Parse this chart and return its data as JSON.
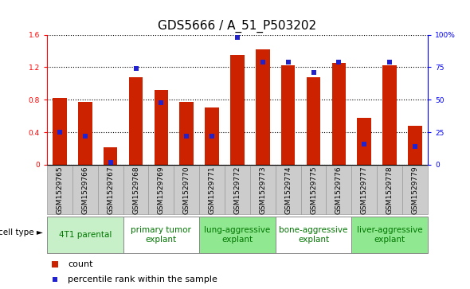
{
  "title": "GDS5666 / A_51_P503202",
  "samples": [
    "GSM1529765",
    "GSM1529766",
    "GSM1529767",
    "GSM1529768",
    "GSM1529769",
    "GSM1529770",
    "GSM1529771",
    "GSM1529772",
    "GSM1529773",
    "GSM1529774",
    "GSM1529775",
    "GSM1529776",
    "GSM1529777",
    "GSM1529778",
    "GSM1529779"
  ],
  "counts": [
    0.82,
    0.77,
    0.21,
    1.08,
    0.92,
    0.77,
    0.7,
    1.35,
    1.42,
    1.22,
    1.08,
    1.25,
    0.58,
    1.22,
    0.48
  ],
  "percentiles": [
    25,
    22,
    2,
    74,
    48,
    22,
    22,
    98,
    79,
    79,
    71,
    79,
    16,
    79,
    14
  ],
  "groups": [
    {
      "label": "4T1 parental",
      "start": 0,
      "end": 3,
      "color": "#c8f0c8"
    },
    {
      "label": "primary tumor\nexplant",
      "start": 3,
      "end": 6,
      "color": "#ffffff"
    },
    {
      "label": "lung-aggressive\nexplant",
      "start": 6,
      "end": 9,
      "color": "#90e890"
    },
    {
      "label": "bone-aggressive\nexplant",
      "start": 9,
      "end": 12,
      "color": "#ffffff"
    },
    {
      "label": "liver-aggressive\nexplant",
      "start": 12,
      "end": 15,
      "color": "#90e890"
    }
  ],
  "ylim_left": [
    0,
    1.6
  ],
  "ylim_right": [
    0,
    100
  ],
  "yticks_left": [
    0,
    0.4,
    0.8,
    1.2,
    1.6
  ],
  "ytick_labels_left": [
    "0",
    "0.4",
    "0.8",
    "1.2",
    "1.6"
  ],
  "yticks_right": [
    0,
    25,
    50,
    75,
    100
  ],
  "ytick_labels_right": [
    "0",
    "25",
    "50",
    "75",
    "100%"
  ],
  "bar_color": "#cc2200",
  "marker_color": "#2222cc",
  "bar_width": 0.55,
  "legend_count_label": "count",
  "legend_percentile_label": "percentile rank within the sample",
  "cell_type_label": "cell type",
  "sample_bg_color": "#cccccc",
  "sample_border_color": "#999999",
  "plot_bg_color": "#ffffff",
  "title_fontsize": 11,
  "tick_fontsize": 6.5,
  "group_fontsize": 7.5,
  "legend_fontsize": 8
}
